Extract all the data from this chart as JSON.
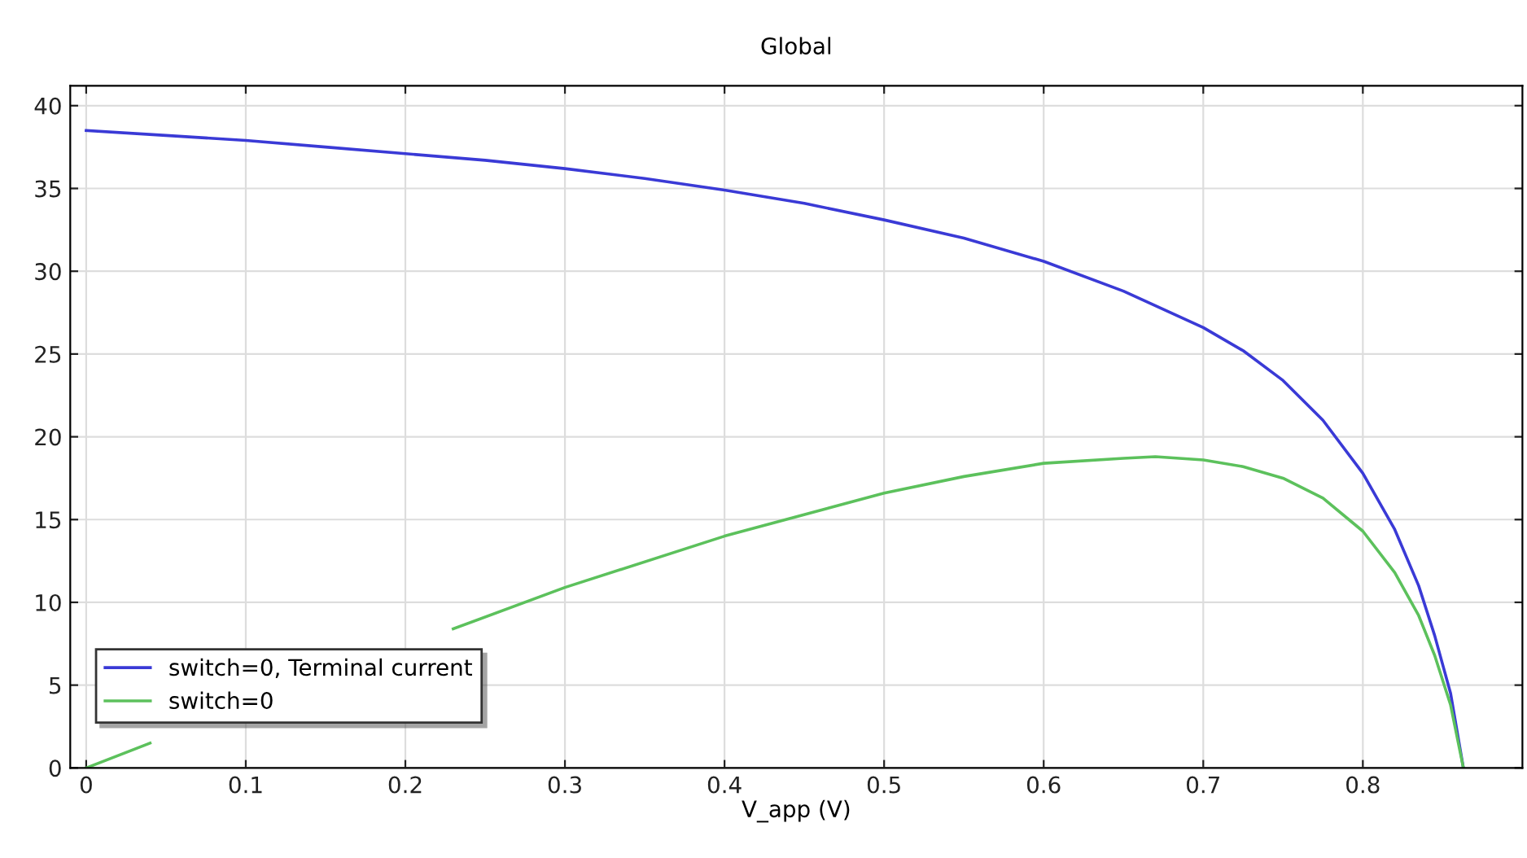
{
  "chart_data": {
    "type": "line",
    "title": "Global",
    "xlabel": "V_app (V)",
    "xlim": [
      -0.01,
      0.9
    ],
    "ylim": [
      0,
      41.2
    ],
    "xticks": [
      0,
      0.1,
      0.2,
      0.3,
      0.4,
      0.5,
      0.6,
      0.7,
      0.8
    ],
    "yticks": [
      0,
      5,
      10,
      15,
      20,
      25,
      30,
      35,
      40
    ],
    "grid": true,
    "legend": "bottom left",
    "marker": "none",
    "line_style": "solid",
    "series": [
      {
        "name": "switch=0, Terminal current",
        "color": "#3a3ad6",
        "x": [
          0,
          0.05,
          0.1,
          0.15,
          0.2,
          0.25,
          0.3,
          0.35,
          0.4,
          0.45,
          0.5,
          0.55,
          0.6,
          0.65,
          0.7,
          0.725,
          0.75,
          0.775,
          0.8,
          0.82,
          0.835,
          0.845,
          0.855,
          0.863
        ],
        "values": [
          38.5,
          38.2,
          37.9,
          37.5,
          37.1,
          36.7,
          36.2,
          35.6,
          34.9,
          34.1,
          33.1,
          32.0,
          30.6,
          28.8,
          26.6,
          25.2,
          23.4,
          21.0,
          17.8,
          14.4,
          11.0,
          8.0,
          4.5,
          0
        ]
      },
      {
        "name": "switch=0",
        "color": "#5cc15c",
        "x": [
          0,
          0.04,
          0.1,
          0.2,
          0.23,
          0.3,
          0.4,
          0.5,
          0.55,
          0.6,
          0.65,
          0.67,
          0.7,
          0.725,
          0.75,
          0.775,
          0.8,
          0.82,
          0.835,
          0.845,
          0.855,
          0.863
        ],
        "values": [
          0,
          1.5,
          null,
          null,
          8.4,
          10.9,
          14.0,
          16.6,
          17.6,
          18.4,
          18.7,
          18.8,
          18.6,
          18.2,
          17.5,
          16.3,
          14.3,
          11.8,
          9.2,
          6.8,
          3.8,
          0
        ]
      }
    ]
  }
}
